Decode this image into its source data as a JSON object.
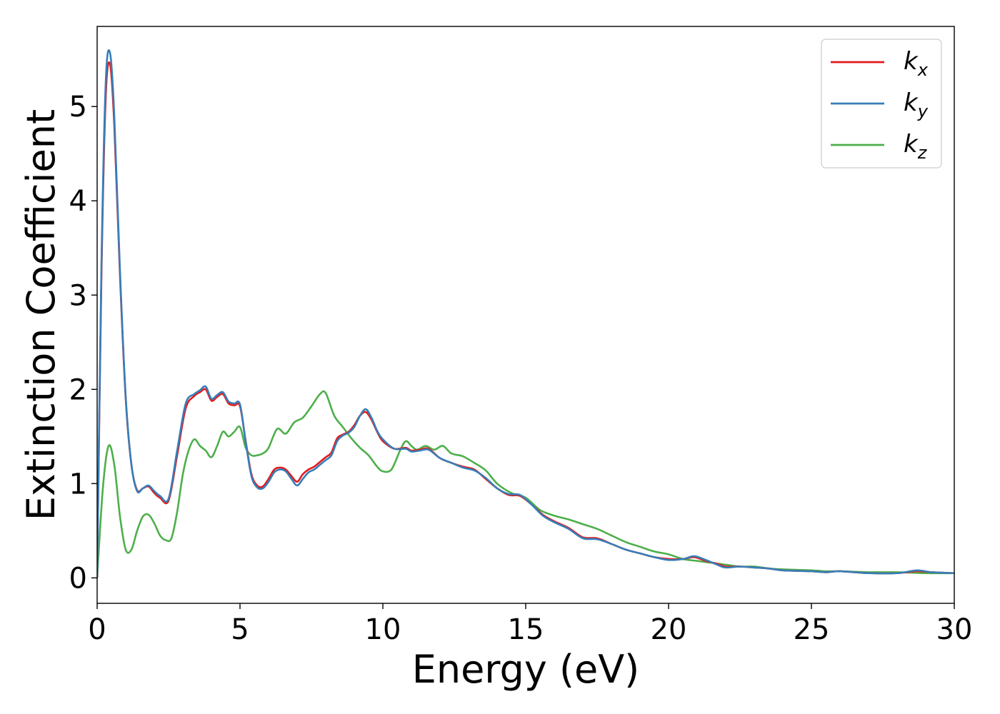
{
  "chart_data": {
    "type": "line",
    "title": "",
    "xlabel": "Energy (eV)",
    "ylabel": "Extinction Coefficient",
    "xlim": [
      0,
      30
    ],
    "ylim": [
      -0.27,
      5.85
    ],
    "xticks": [
      0,
      5,
      10,
      15,
      20,
      25,
      30
    ],
    "yticks": [
      0,
      1,
      2,
      3,
      4,
      5
    ],
    "grid": false,
    "legend": "top-right",
    "series": [
      {
        "name": "k",
        "subscript": "x",
        "color": "#e41a1c",
        "x": [
          0,
          0.15,
          0.3,
          0.45,
          0.6,
          0.8,
          1.0,
          1.2,
          1.4,
          1.6,
          1.8,
          2.0,
          2.2,
          2.5,
          2.8,
          3.1,
          3.4,
          3.6,
          3.8,
          4.0,
          4.2,
          4.4,
          4.6,
          4.8,
          5.0,
          5.2,
          5.4,
          5.6,
          5.8,
          6.0,
          6.2,
          6.4,
          6.6,
          6.8,
          7.0,
          7.2,
          7.4,
          7.6,
          7.8,
          8.0,
          8.2,
          8.4,
          8.6,
          8.8,
          9.0,
          9.2,
          9.4,
          9.6,
          9.8,
          10.0,
          10.4,
          10.8,
          11.0,
          11.3,
          11.6,
          12.0,
          12.4,
          12.8,
          13.2,
          13.6,
          14.0,
          14.4,
          14.8,
          15.2,
          15.6,
          16.0,
          16.5,
          17.0,
          17.5,
          18.0,
          18.5,
          19.0,
          19.5,
          20.0,
          20.5,
          20.9,
          21.3,
          21.7,
          22.0,
          22.5,
          23.0,
          23.5,
          24.0,
          25.0,
          25.5,
          26.0,
          27.0,
          28.0,
          28.7,
          29.2,
          30.0
        ],
        "y": [
          0.0,
          3.2,
          5.1,
          5.45,
          4.8,
          3.2,
          1.9,
          1.2,
          0.93,
          0.95,
          0.97,
          0.9,
          0.85,
          0.82,
          1.3,
          1.8,
          1.93,
          1.97,
          2.0,
          1.88,
          1.92,
          1.95,
          1.85,
          1.83,
          1.82,
          1.45,
          1.1,
          0.98,
          0.97,
          1.05,
          1.15,
          1.17,
          1.15,
          1.08,
          1.02,
          1.1,
          1.15,
          1.18,
          1.23,
          1.28,
          1.33,
          1.48,
          1.52,
          1.55,
          1.62,
          1.72,
          1.76,
          1.68,
          1.55,
          1.45,
          1.37,
          1.38,
          1.35,
          1.36,
          1.37,
          1.27,
          1.22,
          1.18,
          1.15,
          1.05,
          0.95,
          0.88,
          0.87,
          0.78,
          0.67,
          0.6,
          0.53,
          0.43,
          0.42,
          0.36,
          0.3,
          0.26,
          0.22,
          0.2,
          0.2,
          0.22,
          0.18,
          0.15,
          0.12,
          0.12,
          0.11,
          0.1,
          0.08,
          0.07,
          0.06,
          0.07,
          0.05,
          0.05,
          0.07,
          0.06,
          0.05
        ]
      },
      {
        "name": "k",
        "subscript": "y",
        "color": "#377eb8",
        "x": [
          0,
          0.15,
          0.3,
          0.45,
          0.6,
          0.8,
          1.0,
          1.2,
          1.4,
          1.6,
          1.8,
          2.0,
          2.2,
          2.5,
          2.8,
          3.1,
          3.4,
          3.6,
          3.8,
          4.0,
          4.2,
          4.4,
          4.6,
          4.8,
          5.0,
          5.2,
          5.4,
          5.6,
          5.8,
          6.0,
          6.2,
          6.4,
          6.6,
          6.8,
          7.0,
          7.2,
          7.4,
          7.6,
          7.8,
          8.0,
          8.2,
          8.4,
          8.6,
          8.8,
          9.0,
          9.2,
          9.4,
          9.6,
          9.8,
          10.0,
          10.4,
          10.8,
          11.0,
          11.3,
          11.6,
          12.0,
          12.4,
          12.8,
          13.2,
          13.6,
          14.0,
          14.4,
          14.8,
          15.2,
          15.6,
          16.0,
          16.5,
          17.0,
          17.5,
          18.0,
          18.5,
          19.0,
          19.5,
          20.0,
          20.5,
          20.9,
          21.3,
          21.7,
          22.0,
          22.5,
          23.0,
          23.5,
          24.0,
          25.0,
          25.5,
          26.0,
          27.0,
          28.0,
          28.7,
          29.2,
          30.0
        ],
        "y": [
          0.0,
          3.3,
          5.25,
          5.57,
          4.9,
          3.25,
          1.92,
          1.2,
          0.92,
          0.95,
          0.98,
          0.92,
          0.87,
          0.84,
          1.35,
          1.85,
          1.95,
          1.99,
          2.03,
          1.9,
          1.94,
          1.97,
          1.87,
          1.85,
          1.84,
          1.44,
          1.08,
          0.96,
          0.95,
          1.02,
          1.12,
          1.15,
          1.13,
          1.05,
          0.98,
          1.05,
          1.12,
          1.15,
          1.2,
          1.25,
          1.3,
          1.45,
          1.51,
          1.54,
          1.6,
          1.72,
          1.79,
          1.7,
          1.56,
          1.47,
          1.37,
          1.37,
          1.34,
          1.35,
          1.36,
          1.27,
          1.22,
          1.17,
          1.14,
          1.06,
          0.95,
          0.89,
          0.88,
          0.78,
          0.66,
          0.59,
          0.52,
          0.42,
          0.41,
          0.36,
          0.3,
          0.26,
          0.22,
          0.19,
          0.2,
          0.23,
          0.19,
          0.14,
          0.11,
          0.12,
          0.11,
          0.1,
          0.08,
          0.07,
          0.06,
          0.07,
          0.05,
          0.05,
          0.08,
          0.06,
          0.05
        ]
      },
      {
        "name": "k",
        "subscript": "z",
        "color": "#4daf4a",
        "x": [
          0,
          0.2,
          0.4,
          0.6,
          0.8,
          1.0,
          1.2,
          1.4,
          1.6,
          1.8,
          2.0,
          2.2,
          2.4,
          2.6,
          2.8,
          3.0,
          3.2,
          3.4,
          3.6,
          3.8,
          4.0,
          4.2,
          4.4,
          4.6,
          4.8,
          5.0,
          5.2,
          5.4,
          5.6,
          5.8,
          6.0,
          6.3,
          6.6,
          6.9,
          7.2,
          7.5,
          7.8,
          8.0,
          8.3,
          8.6,
          8.9,
          9.2,
          9.5,
          9.8,
          10.0,
          10.3,
          10.6,
          10.8,
          11.0,
          11.2,
          11.5,
          11.8,
          12.1,
          12.4,
          12.8,
          13.2,
          13.6,
          14.0,
          14.5,
          15.0,
          15.5,
          16.0,
          16.5,
          17.0,
          17.5,
          18.0,
          18.5,
          19.0,
          19.5,
          20.0,
          20.5,
          21.0,
          21.5,
          22.0,
          22.5,
          23.0,
          23.5,
          24.0,
          25.0,
          25.5,
          26.0,
          27.0,
          28.0,
          29.0,
          30.0
        ],
        "y": [
          0.0,
          0.95,
          1.4,
          1.2,
          0.65,
          0.3,
          0.3,
          0.5,
          0.65,
          0.67,
          0.58,
          0.45,
          0.4,
          0.42,
          0.7,
          1.1,
          1.35,
          1.47,
          1.4,
          1.35,
          1.28,
          1.4,
          1.55,
          1.5,
          1.55,
          1.6,
          1.38,
          1.3,
          1.3,
          1.32,
          1.38,
          1.58,
          1.53,
          1.65,
          1.7,
          1.82,
          1.95,
          1.96,
          1.72,
          1.6,
          1.48,
          1.38,
          1.3,
          1.18,
          1.13,
          1.15,
          1.35,
          1.45,
          1.4,
          1.36,
          1.4,
          1.36,
          1.4,
          1.32,
          1.29,
          1.22,
          1.14,
          1.0,
          0.9,
          0.85,
          0.72,
          0.66,
          0.62,
          0.57,
          0.52,
          0.45,
          0.38,
          0.33,
          0.28,
          0.25,
          0.2,
          0.18,
          0.16,
          0.14,
          0.12,
          0.12,
          0.1,
          0.09,
          0.08,
          0.07,
          0.07,
          0.06,
          0.06,
          0.05,
          0.05
        ]
      }
    ]
  }
}
